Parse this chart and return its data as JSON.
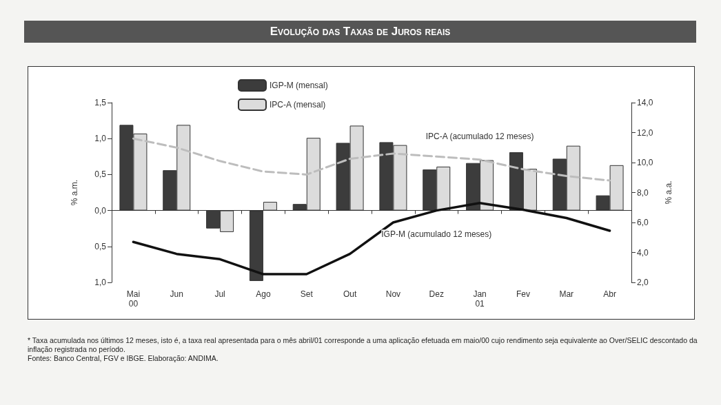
{
  "chart_data": {
    "type": "bar",
    "title": "Evolução das Taxas de Juros reais",
    "categories": [
      "Mai\n00",
      "Jun",
      "Jul",
      "Ago",
      "Set",
      "Out",
      "Nov",
      "Dez",
      "Jan\n01",
      "Fev",
      "Mar",
      "Abr"
    ],
    "series": [
      {
        "name": "IGP-M (mensal)",
        "color": "#3c3c3c",
        "values": [
          1.19,
          0.56,
          -0.25,
          -0.98,
          0.09,
          0.94,
          0.95,
          0.57,
          0.66,
          0.81,
          0.72,
          0.21
        ]
      },
      {
        "name": "IPC-A (mensal)",
        "color": "#dcdcdc",
        "values": [
          1.07,
          1.19,
          -0.3,
          0.12,
          1.01,
          1.18,
          0.91,
          0.61,
          0.7,
          0.58,
          0.9,
          0.63
        ]
      },
      {
        "name": "IPC-A (acumulado 12 meses)",
        "type": "line",
        "axis": "y2",
        "color": "#bdbdbd",
        "line_style": "dashed",
        "values": [
          11.6,
          11.0,
          10.1,
          9.4,
          9.2,
          10.25,
          10.6,
          10.4,
          10.2,
          9.55,
          9.1,
          8.8
        ]
      },
      {
        "name": "IGP-M (acumulado 12 meses)",
        "type": "line",
        "axis": "y2",
        "color": "#111111",
        "line_style": "solid",
        "values": [
          4.7,
          3.9,
          3.55,
          2.55,
          2.55,
          3.9,
          6.0,
          6.8,
          7.3,
          6.85,
          6.3,
          5.45
        ]
      }
    ],
    "ylabel": "% a.m.",
    "y2label": "% a.a.",
    "ylim": [
      -1,
      1.5
    ],
    "yticks": [
      {
        "value": -1,
        "label": "1,0"
      },
      {
        "value": -0.5,
        "label": "0,5"
      },
      {
        "value": 0,
        "label": "0,0"
      },
      {
        "value": 0.5,
        "label": "0,5"
      },
      {
        "value": 1,
        "label": "1,0"
      },
      {
        "value": 1.5,
        "label": "1,5"
      }
    ],
    "y2lim": [
      2,
      14
    ],
    "y2ticks": [
      {
        "value": 2,
        "label": "2,0"
      },
      {
        "value": 4,
        "label": "4,0"
      },
      {
        "value": 6,
        "label": "6,0"
      },
      {
        "value": 8,
        "label": "8,0"
      },
      {
        "value": 10,
        "label": "10,0"
      },
      {
        "value": 12,
        "label": "12,0"
      },
      {
        "value": 14,
        "label": "14,0"
      }
    ],
    "marker": "none",
    "legend": "top",
    "annotations": [
      "* Taxa acumulada nos últimos 12 meses, isto é, a taxa real apresentada para o mês abril/01 corresponde a uma aplicação efetuada em maio/00 cujo rendimento seja equivalente ao Over/SELIC descontado da inflação registrada no período.",
      "Fontes: Banco Central, FGV e IBGE. Elaboração: ANDIMA."
    ]
  }
}
